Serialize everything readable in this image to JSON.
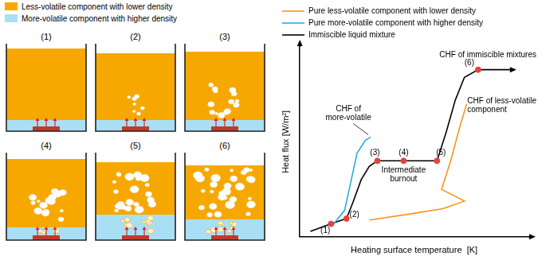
{
  "schematic": {
    "legend": [
      {
        "label": "Less-volatile component with lower density",
        "color": "#f7a800"
      },
      {
        "label": "More-volatile component with higher density",
        "color": "#a9dff4"
      }
    ],
    "panels": [
      "(1)",
      "(2)",
      "(3)",
      "(4)",
      "(5)",
      "(6)"
    ]
  },
  "chart_data": {
    "type": "line",
    "x_label": "Heating surface temperature  [K]",
    "y_label": "Heat flux [W/m²]",
    "xlim": [
      0,
      100
    ],
    "ylim": [
      0,
      100
    ],
    "xticks": [],
    "yticks": [],
    "tick_labels": false,
    "grid": false,
    "legend": "top",
    "series": [
      {
        "name": "Pure less-volatile component with lower density",
        "color": "#f7941d",
        "line_style": "solid",
        "marker": "none",
        "x": [
          30.4,
          48.2,
          62.5,
          72,
          62,
          66,
          70,
          73
        ],
        "values": [
          8.8,
          12,
          14.8,
          18.8,
          25,
          40,
          58,
          70
        ]
      },
      {
        "name": "Pure more-volatile component with higher density",
        "color": "#29abe2",
        "line_style": "solid",
        "marker": "none",
        "x": [
          14.3,
          19.6,
          22.5,
          25,
          28.6,
          31
        ],
        "values": [
          6,
          14,
          30,
          44,
          50.8,
          52.5
        ]
      },
      {
        "name": "Immiscible liquid mixture",
        "color": "#000000",
        "line_style": "solid",
        "marker": "none",
        "x": [
          4.6,
          13.6,
          20.4,
          23.2,
          26.8,
          30.4,
          33.9,
          45.4,
          60,
          64,
          68,
          72,
          78,
          94
        ],
        "values": [
          2.8,
          6.8,
          9.6,
          18,
          30,
          37.2,
          40,
          40,
          40,
          55,
          72,
          84,
          88,
          88
        ]
      }
    ],
    "points": {
      "color": "#e8413c",
      "marker": "circle",
      "items": [
        {
          "label": "(1)",
          "x": 13.6,
          "y": 6.8
        },
        {
          "label": "(2)",
          "x": 20.4,
          "y": 9.6
        },
        {
          "label": "(3)",
          "x": 33.9,
          "y": 40
        },
        {
          "label": "(4)",
          "x": 45.4,
          "y": 40
        },
        {
          "label": "(5)",
          "x": 60,
          "y": 40
        },
        {
          "label": "(6)",
          "x": 78,
          "y": 88
        }
      ]
    },
    "annotations": [
      {
        "lines": [
          "CHF of",
          "more-volatile"
        ],
        "x": 31,
        "y": 52.5
      },
      {
        "lines": [
          "Intermediate",
          "burnout"
        ],
        "x": 45.4,
        "y": 40
      },
      {
        "lines": [
          "CHF of immiscible mixtures"
        ],
        "x": 78,
        "y": 88
      },
      {
        "lines": [
          "CHF of less-volatile",
          "component"
        ],
        "x": 73,
        "y": 70
      }
    ]
  }
}
